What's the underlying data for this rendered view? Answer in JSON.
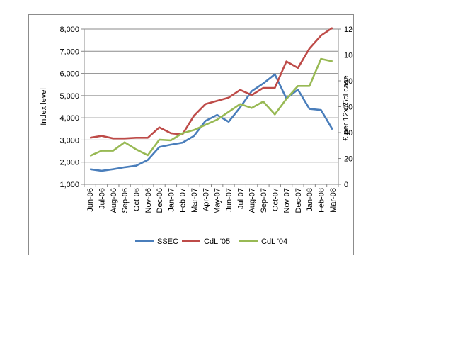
{
  "chart_data": {
    "type": "line",
    "categories": [
      "Jun-06",
      "Jul-06",
      "Aug-06",
      "Sep-06",
      "Oct-06",
      "Nov-06",
      "Dec-06",
      "Jan-07",
      "Feb-07",
      "Mar-07",
      "Apr-07",
      "May-07",
      "Jun-07",
      "Jul-07",
      "Aug-07",
      "Sep-07",
      "Oct-07",
      "Nov-07",
      "Dec-07",
      "Jan-08",
      "Feb-08",
      "Mar-08"
    ],
    "ylabel": "Index level",
    "y2label": "£ per 12x75cl case",
    "ylim": [
      1000,
      8000
    ],
    "yticks": [
      "1,000",
      "2,000",
      "3,000",
      "4,000",
      "5,000",
      "6,000",
      "7,000",
      "8,000"
    ],
    "y2lim": [
      0,
      1200
    ],
    "y2ticks": [
      "0",
      "200",
      "400",
      "600",
      "800",
      "1000",
      "1200"
    ],
    "grid": true,
    "legend_position": "bottom",
    "series": [
      {
        "name": "SSEC",
        "axis": "left",
        "color": "#4a7ebb",
        "values": [
          1680,
          1610,
          1680,
          1770,
          1840,
          2100,
          2680,
          2790,
          2880,
          3180,
          3860,
          4130,
          3820,
          4470,
          5200,
          5550,
          5960,
          4870,
          5270,
          4400,
          4350,
          3470
        ]
      },
      {
        "name": "CdL '05",
        "axis": "right",
        "color": "#be4b48",
        "values": [
          360,
          375,
          355,
          355,
          360,
          360,
          440,
          395,
          385,
          530,
          620,
          645,
          670,
          730,
          690,
          745,
          745,
          950,
          900,
          1050,
          1150,
          1210
        ]
      },
      {
        "name": "CdL '04",
        "axis": "right",
        "color": "#98b954",
        "values": [
          220,
          260,
          260,
          325,
          270,
          225,
          345,
          340,
          395,
          420,
          460,
          500,
          560,
          620,
          590,
          640,
          540,
          660,
          760,
          760,
          970,
          950
        ]
      }
    ]
  }
}
